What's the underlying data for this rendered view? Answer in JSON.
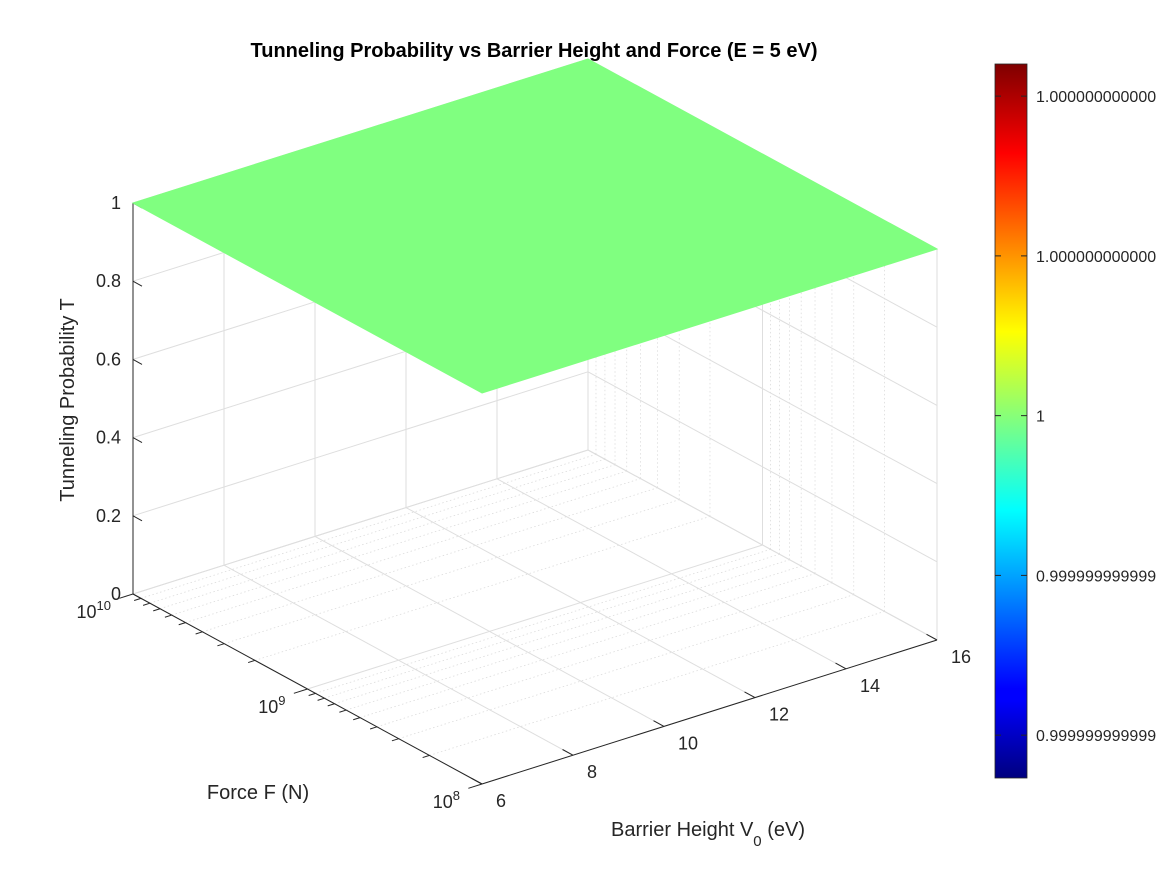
{
  "chart_data": {
    "type": "surface3d",
    "title": "Tunneling Probability vs Barrier Height and Force (E = 5 eV)",
    "xlabel": "Barrier Height V",
    "xlabel_subscript": "0",
    "xlabel_unit": " (eV)",
    "ylabel": "Force F (N)",
    "zlabel": "Tunneling Probability T",
    "x_ticks": [
      "6",
      "8",
      "10",
      "12",
      "14",
      "16"
    ],
    "x_range": [
      6,
      16
    ],
    "y_scale": "log",
    "y_range": [
      100000000,
      10000000000
    ],
    "y_ticks": [
      {
        "base": "10",
        "exp": "8"
      },
      {
        "base": "10",
        "exp": "9"
      },
      {
        "base": "10",
        "exp": "10"
      }
    ],
    "z_ticks": [
      "0",
      "0.2",
      "0.4",
      "0.6",
      "0.8",
      "1"
    ],
    "z_range": [
      0,
      1
    ],
    "surface_value": 1,
    "surface_color": "#80ff80",
    "grid": true,
    "colormap": "jet",
    "colorbar_ticks": [
      "0.999999999999",
      "0.999999999999",
      "1",
      "1.000000000000",
      "1.000000000000"
    ]
  }
}
